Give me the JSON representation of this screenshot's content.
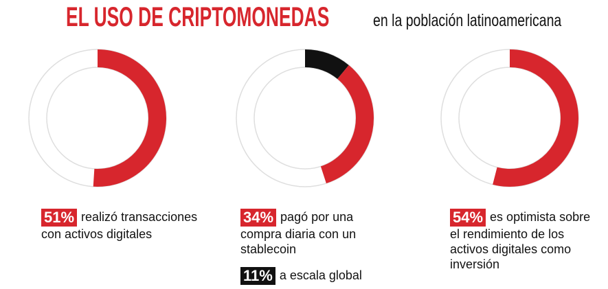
{
  "header": {
    "title": "EL USO DE CRIPTOMONEDAS",
    "subtitle": "en la población latinoamericana"
  },
  "colors": {
    "accent": "#d7262d",
    "dark": "#111111",
    "track": "#dedede"
  },
  "chart_data": [
    {
      "type": "pie",
      "style": "donut",
      "segments": [
        {
          "label": "51%",
          "value": 51,
          "color": "#d7262d"
        }
      ],
      "badge": "51%",
      "caption": "realizó transacciones con activos digitales"
    },
    {
      "type": "pie",
      "style": "donut",
      "segments": [
        {
          "label": "11%",
          "value": 11,
          "color": "#111111"
        },
        {
          "label": "34%",
          "value": 34,
          "color": "#d7262d"
        }
      ],
      "badge": "34%",
      "caption": "pagó por una compra diaria con un stablecoin",
      "extra_badge": "11%",
      "extra_caption": "a escala global"
    },
    {
      "type": "pie",
      "style": "donut",
      "segments": [
        {
          "label": "54%",
          "value": 54,
          "color": "#d7262d"
        }
      ],
      "badge": "54%",
      "caption": "es optimista sobre el rendimiento de los activos digitales como inversión"
    }
  ]
}
